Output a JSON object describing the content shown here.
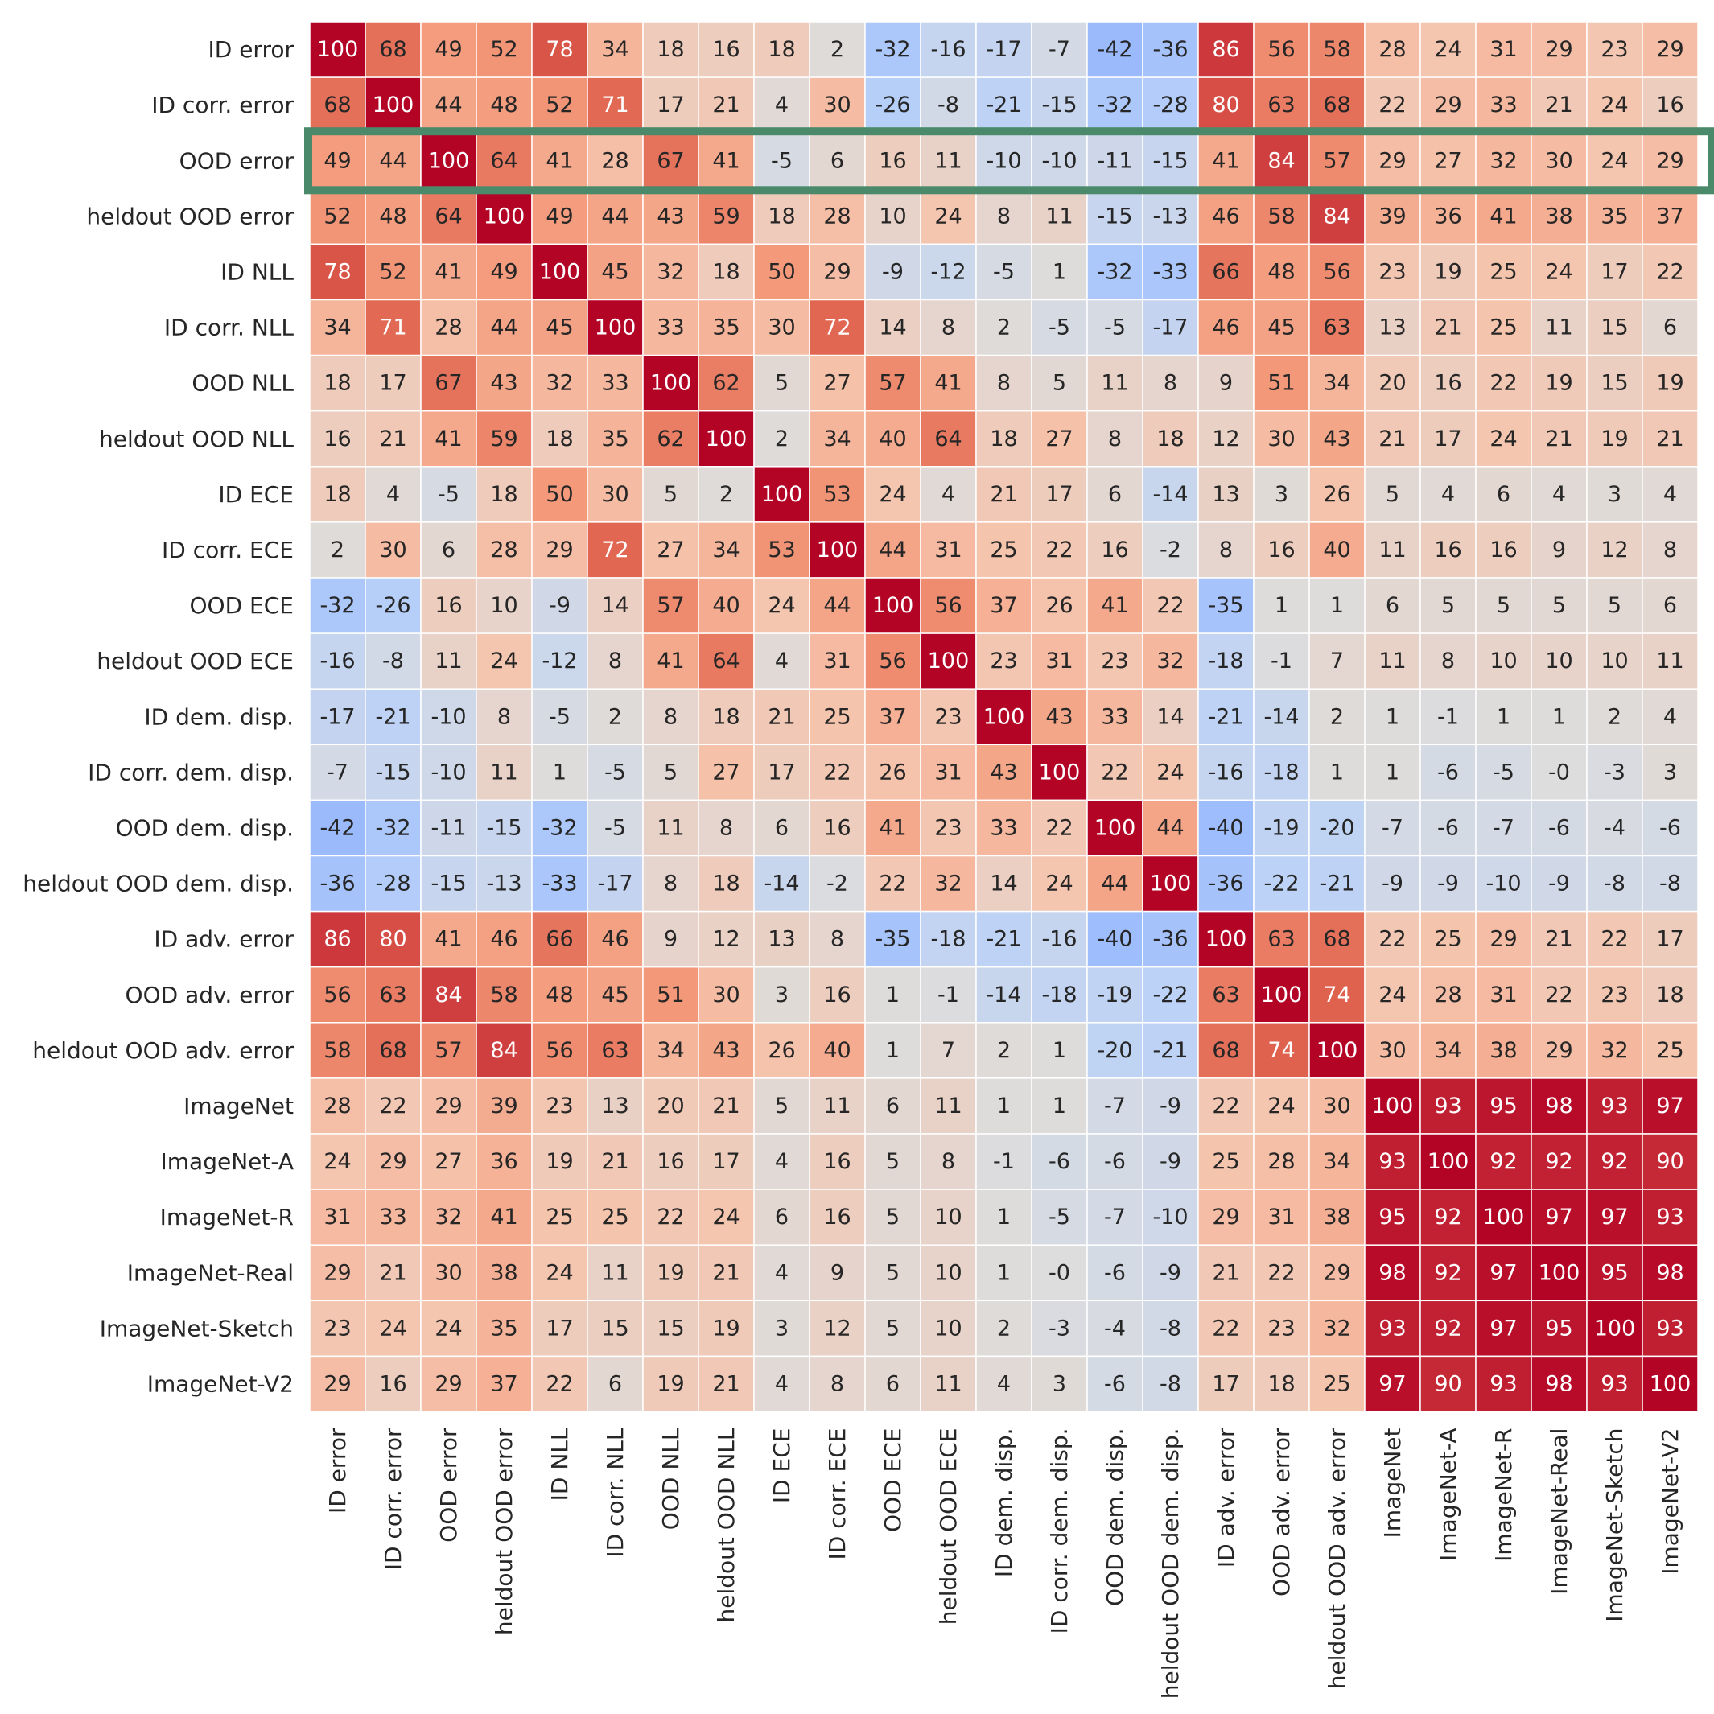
{
  "chart_data": {
    "type": "heatmap",
    "title": "",
    "xlabel": "",
    "ylabel": "",
    "colormap": "coolwarm",
    "vmin": -100,
    "vmax": 100,
    "highlight_row_label": "OOD error",
    "highlight_color": "#4a8a6a",
    "row_labels": [
      "ID error",
      "ID corr. error",
      "OOD error",
      "heldout OOD error",
      "ID NLL",
      "ID corr. NLL",
      "OOD NLL",
      "heldout OOD NLL",
      "ID ECE",
      "ID corr. ECE",
      "OOD ECE",
      "heldout OOD ECE",
      "ID dem. disp.",
      "ID corr. dem. disp.",
      "OOD dem. disp.",
      "heldout OOD dem. disp.",
      "ID adv. error",
      "OOD adv. error",
      "heldout OOD adv. error",
      "ImageNet",
      "ImageNet-A",
      "ImageNet-R",
      "ImageNet-Real",
      "ImageNet-Sketch",
      "ImageNet-V2"
    ],
    "col_labels": [
      "ID error",
      "ID corr. error",
      "OOD error",
      "heldout OOD error",
      "ID NLL",
      "ID corr. NLL",
      "OOD NLL",
      "heldout OOD NLL",
      "ID ECE",
      "ID corr. ECE",
      "OOD ECE",
      "heldout OOD ECE",
      "ID dem. disp.",
      "ID corr. dem. disp.",
      "OOD dem. disp.",
      "heldout OOD dem. disp.",
      "ID adv. error",
      "OOD adv. error",
      "heldout OOD adv. error",
      "ImageNet",
      "ImageNet-A",
      "ImageNet-R",
      "ImageNet-Real",
      "ImageNet-Sketch",
      "ImageNet-V2"
    ],
    "values": [
      [
        "100",
        "68",
        "49",
        "52",
        "78",
        "34",
        "18",
        "16",
        "18",
        "2",
        "-32",
        "-16",
        "-17",
        "-7",
        "-42",
        "-36",
        "86",
        "56",
        "58",
        "28",
        "24",
        "31",
        "29",
        "23",
        "29"
      ],
      [
        "68",
        "100",
        "44",
        "48",
        "52",
        "71",
        "17",
        "21",
        "4",
        "30",
        "-26",
        "-8",
        "-21",
        "-15",
        "-32",
        "-28",
        "80",
        "63",
        "68",
        "22",
        "29",
        "33",
        "21",
        "24",
        "16"
      ],
      [
        "49",
        "44",
        "100",
        "64",
        "41",
        "28",
        "67",
        "41",
        "-5",
        "6",
        "16",
        "11",
        "-10",
        "-10",
        "-11",
        "-15",
        "41",
        "84",
        "57",
        "29",
        "27",
        "32",
        "30",
        "24",
        "29"
      ],
      [
        "52",
        "48",
        "64",
        "100",
        "49",
        "44",
        "43",
        "59",
        "18",
        "28",
        "10",
        "24",
        "8",
        "11",
        "-15",
        "-13",
        "46",
        "58",
        "84",
        "39",
        "36",
        "41",
        "38",
        "35",
        "37"
      ],
      [
        "78",
        "52",
        "41",
        "49",
        "100",
        "45",
        "32",
        "18",
        "50",
        "29",
        "-9",
        "-12",
        "-5",
        "1",
        "-32",
        "-33",
        "66",
        "48",
        "56",
        "23",
        "19",
        "25",
        "24",
        "17",
        "22"
      ],
      [
        "34",
        "71",
        "28",
        "44",
        "45",
        "100",
        "33",
        "35",
        "30",
        "72",
        "14",
        "8",
        "2",
        "-5",
        "-5",
        "-17",
        "46",
        "45",
        "63",
        "13",
        "21",
        "25",
        "11",
        "15",
        "6"
      ],
      [
        "18",
        "17",
        "67",
        "43",
        "32",
        "33",
        "100",
        "62",
        "5",
        "27",
        "57",
        "41",
        "8",
        "5",
        "11",
        "8",
        "9",
        "51",
        "34",
        "20",
        "16",
        "22",
        "19",
        "15",
        "19"
      ],
      [
        "16",
        "21",
        "41",
        "59",
        "18",
        "35",
        "62",
        "100",
        "2",
        "34",
        "40",
        "64",
        "18",
        "27",
        "8",
        "18",
        "12",
        "30",
        "43",
        "21",
        "17",
        "24",
        "21",
        "19",
        "21"
      ],
      [
        "18",
        "4",
        "-5",
        "18",
        "50",
        "30",
        "5",
        "2",
        "100",
        "53",
        "24",
        "4",
        "21",
        "17",
        "6",
        "-14",
        "13",
        "3",
        "26",
        "5",
        "4",
        "6",
        "4",
        "3",
        "4"
      ],
      [
        "2",
        "30",
        "6",
        "28",
        "29",
        "72",
        "27",
        "34",
        "53",
        "100",
        "44",
        "31",
        "25",
        "22",
        "16",
        "-2",
        "8",
        "16",
        "40",
        "11",
        "16",
        "16",
        "9",
        "12",
        "8"
      ],
      [
        "-32",
        "-26",
        "16",
        "10",
        "-9",
        "14",
        "57",
        "40",
        "24",
        "44",
        "100",
        "56",
        "37",
        "26",
        "41",
        "22",
        "-35",
        "1",
        "1",
        "6",
        "5",
        "5",
        "5",
        "5",
        "6"
      ],
      [
        "-16",
        "-8",
        "11",
        "24",
        "-12",
        "8",
        "41",
        "64",
        "4",
        "31",
        "56",
        "100",
        "23",
        "31",
        "23",
        "32",
        "-18",
        "-1",
        "7",
        "11",
        "8",
        "10",
        "10",
        "10",
        "11"
      ],
      [
        "-17",
        "-21",
        "-10",
        "8",
        "-5",
        "2",
        "8",
        "18",
        "21",
        "25",
        "37",
        "23",
        "100",
        "43",
        "33",
        "14",
        "-21",
        "-14",
        "2",
        "1",
        "-1",
        "1",
        "1",
        "2",
        "4"
      ],
      [
        "-7",
        "-15",
        "-10",
        "11",
        "1",
        "-5",
        "5",
        "27",
        "17",
        "22",
        "26",
        "31",
        "43",
        "100",
        "22",
        "24",
        "-16",
        "-18",
        "1",
        "1",
        "-6",
        "-5",
        "-0",
        "-3",
        "3"
      ],
      [
        "-42",
        "-32",
        "-11",
        "-15",
        "-32",
        "-5",
        "11",
        "8",
        "6",
        "16",
        "41",
        "23",
        "33",
        "22",
        "100",
        "44",
        "-40",
        "-19",
        "-20",
        "-7",
        "-6",
        "-7",
        "-6",
        "-4",
        "-6"
      ],
      [
        "-36",
        "-28",
        "-15",
        "-13",
        "-33",
        "-17",
        "8",
        "18",
        "-14",
        "-2",
        "22",
        "32",
        "14",
        "24",
        "44",
        "100",
        "-36",
        "-22",
        "-21",
        "-9",
        "-9",
        "-10",
        "-9",
        "-8",
        "-8"
      ],
      [
        "86",
        "80",
        "41",
        "46",
        "66",
        "46",
        "9",
        "12",
        "13",
        "8",
        "-35",
        "-18",
        "-21",
        "-16",
        "-40",
        "-36",
        "100",
        "63",
        "68",
        "22",
        "25",
        "29",
        "21",
        "22",
        "17"
      ],
      [
        "56",
        "63",
        "84",
        "58",
        "48",
        "45",
        "51",
        "30",
        "3",
        "16",
        "1",
        "-1",
        "-14",
        "-18",
        "-19",
        "-22",
        "63",
        "100",
        "74",
        "24",
        "28",
        "31",
        "22",
        "23",
        "18"
      ],
      [
        "58",
        "68",
        "57",
        "84",
        "56",
        "63",
        "34",
        "43",
        "26",
        "40",
        "1",
        "7",
        "2",
        "1",
        "-20",
        "-21",
        "68",
        "74",
        "100",
        "30",
        "34",
        "38",
        "29",
        "32",
        "25"
      ],
      [
        "28",
        "22",
        "29",
        "39",
        "23",
        "13",
        "20",
        "21",
        "5",
        "11",
        "6",
        "11",
        "1",
        "1",
        "-7",
        "-9",
        "22",
        "24",
        "30",
        "100",
        "93",
        "95",
        "98",
        "93",
        "97"
      ],
      [
        "24",
        "29",
        "27",
        "36",
        "19",
        "21",
        "16",
        "17",
        "4",
        "16",
        "5",
        "8",
        "-1",
        "-6",
        "-6",
        "-9",
        "25",
        "28",
        "34",
        "93",
        "100",
        "92",
        "92",
        "92",
        "90"
      ],
      [
        "31",
        "33",
        "32",
        "41",
        "25",
        "25",
        "22",
        "24",
        "6",
        "16",
        "5",
        "10",
        "1",
        "-5",
        "-7",
        "-10",
        "29",
        "31",
        "38",
        "95",
        "92",
        "100",
        "97",
        "97",
        "93"
      ],
      [
        "29",
        "21",
        "30",
        "38",
        "24",
        "11",
        "19",
        "21",
        "4",
        "9",
        "5",
        "10",
        "1",
        "-0",
        "-6",
        "-9",
        "21",
        "22",
        "29",
        "98",
        "92",
        "97",
        "100",
        "95",
        "98"
      ],
      [
        "23",
        "24",
        "24",
        "35",
        "17",
        "15",
        "15",
        "19",
        "3",
        "12",
        "5",
        "10",
        "2",
        "-3",
        "-4",
        "-8",
        "22",
        "23",
        "32",
        "93",
        "92",
        "97",
        "95",
        "100",
        "93"
      ],
      [
        "29",
        "16",
        "29",
        "37",
        "22",
        "6",
        "19",
        "21",
        "4",
        "8",
        "6",
        "11",
        "4",
        "3",
        "-6",
        "-8",
        "17",
        "18",
        "25",
        "97",
        "90",
        "93",
        "98",
        "93",
        "100"
      ]
    ]
  }
}
